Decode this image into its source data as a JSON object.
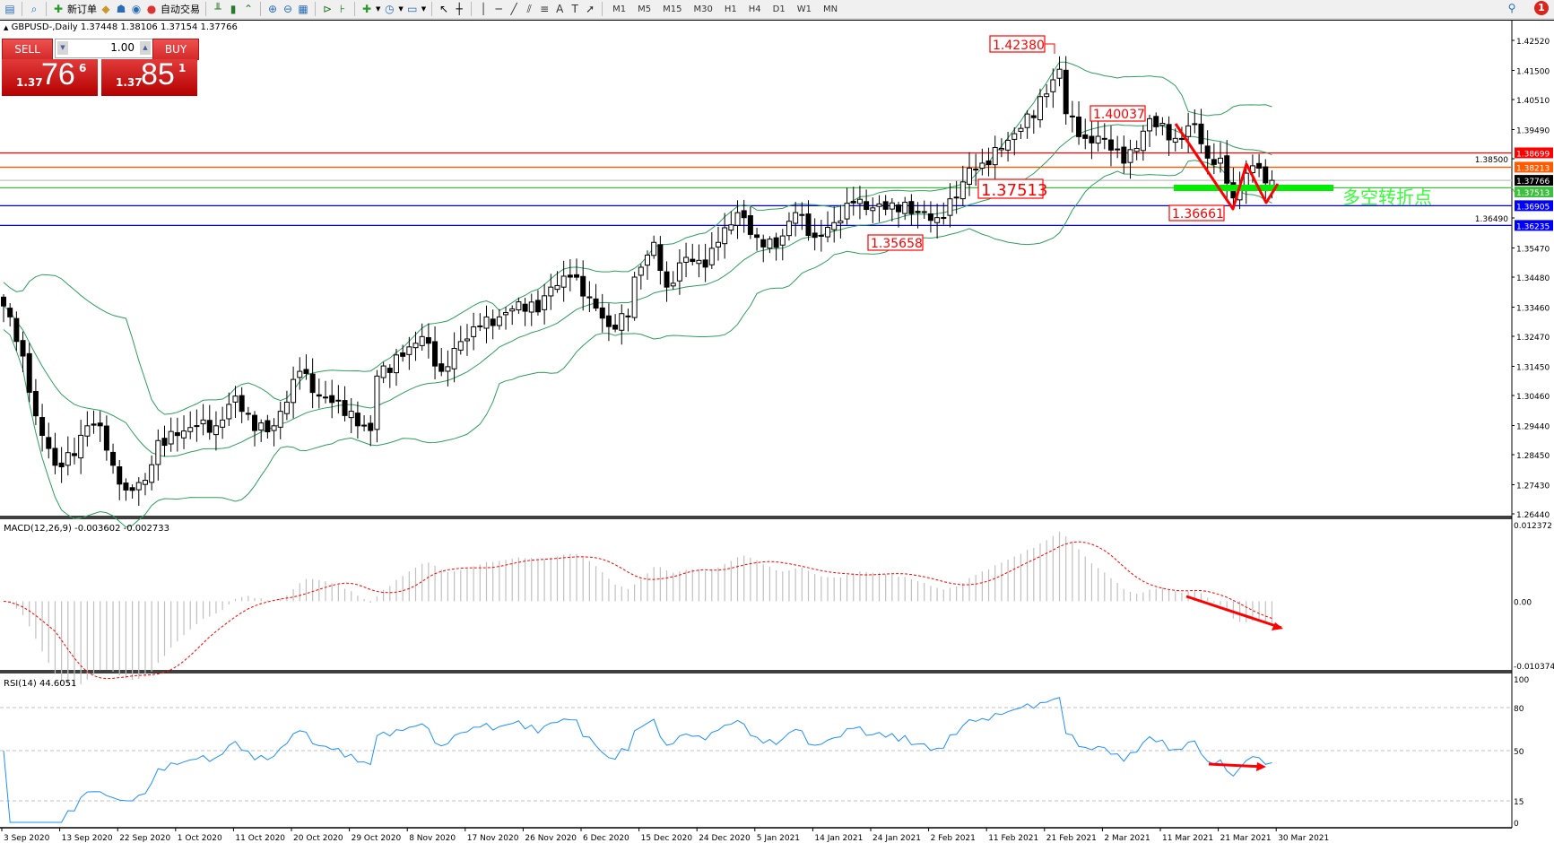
{
  "toolbar": {
    "new_order": "新订单",
    "auto_trading": "自动交易",
    "timeframes": [
      "M1",
      "M5",
      "M15",
      "M30",
      "H1",
      "H4",
      "D1",
      "W1",
      "MN"
    ],
    "active_timeframe": "D1",
    "notification_count": "1",
    "icons": [
      "new-chart-icon",
      "zoom-tool-icon",
      "new-order-icon",
      "market-watch-icon",
      "navigator-icon",
      "signals-icon",
      "auto-trading-icon",
      "bar-chart-icon",
      "candlestick-icon",
      "line-chart-icon",
      "zoom-in-icon",
      "zoom-out-icon",
      "tile-windows-icon",
      "auto-scroll-icon",
      "chart-shift-icon",
      "indicators-icon",
      "periods-icon",
      "templates-icon",
      "cursor-icon",
      "crosshair-icon",
      "vertical-line-icon",
      "horizontal-line-icon",
      "trendline-icon",
      "equidistant-channel-icon",
      "fibonacci-icon",
      "text-icon",
      "text-label-icon",
      "arrows-icon",
      "search-icon",
      "notifications-icon"
    ]
  },
  "header": {
    "symbol": "GBPUSD-,Daily",
    "open": "1.37448",
    "high": "1.38106",
    "low": "1.37154",
    "close": "1.37766"
  },
  "trade_panel": {
    "sell_label": "SELL",
    "buy_label": "BUY",
    "lot": "1.00",
    "sell_prefix": "1.37",
    "sell_big": "76",
    "sell_sup": "6",
    "buy_prefix": "1.37",
    "buy_big": "85",
    "buy_sup": "1"
  },
  "chart_data": {
    "type": "candlestick",
    "price_range": [
      1.2644,
      1.4252
    ],
    "price_ticks": [
      "1.42520",
      "1.41500",
      "1.40510",
      "1.39490",
      "1.38500",
      "1.36490",
      "1.35470",
      "1.34480",
      "1.33460",
      "1.32470",
      "1.31450",
      "1.30460",
      "1.29440",
      "1.28450",
      "1.27430",
      "1.26440"
    ],
    "date_labels": [
      "3 Sep 2020",
      "13 Sep 2020",
      "22 Sep 2020",
      "1 Oct 2020",
      "11 Oct 2020",
      "20 Oct 2020",
      "29 Oct 2020",
      "8 Nov 2020",
      "17 Nov 2020",
      "26 Nov 2020",
      "6 Dec 2020",
      "15 Dec 2020",
      "24 Dec 2020",
      "5 Jan 2021",
      "14 Jan 2021",
      "24 Jan 2021",
      "2 Feb 2021",
      "11 Feb 2021",
      "21 Feb 2021",
      "2 Mar 2021",
      "11 Mar 2021",
      "21 Mar 2021",
      "30 Mar 2021"
    ],
    "close_keypoints": [
      [
        0,
        1.335
      ],
      [
        1,
        1.3313
      ],
      [
        3,
        1.318
      ],
      [
        5,
        1.2977
      ],
      [
        8,
        1.2809
      ],
      [
        11,
        1.2842
      ],
      [
        13,
        1.2943
      ],
      [
        15,
        1.2943
      ],
      [
        17,
        1.2809
      ],
      [
        19,
        1.2725
      ],
      [
        22,
        1.2758
      ],
      [
        24,
        1.2893
      ],
      [
        27,
        1.291
      ],
      [
        30,
        1.2943
      ],
      [
        33,
        1.2943
      ],
      [
        36,
        1.3044
      ],
      [
        39,
        1.2927
      ],
      [
        42,
        1.2943
      ],
      [
        46,
        1.3128
      ],
      [
        49,
        1.3044
      ],
      [
        52,
        1.3028
      ],
      [
        55,
        1.2943
      ],
      [
        57,
        1.2927
      ],
      [
        58,
        1.3112
      ],
      [
        62,
        1.3179
      ],
      [
        65,
        1.3246
      ],
      [
        68,
        1.3128
      ],
      [
        71,
        1.3229
      ],
      [
        74,
        1.328
      ],
      [
        77,
        1.3313
      ],
      [
        80,
        1.3364
      ],
      [
        83,
        1.333
      ],
      [
        85,
        1.3414
      ],
      [
        88,
        1.3448
      ],
      [
        91,
        1.3381
      ],
      [
        94,
        1.328
      ],
      [
        97,
        1.3313
      ],
      [
        98,
        1.3448
      ],
      [
        101,
        1.3566
      ],
      [
        103,
        1.3414
      ],
      [
        106,
        1.3515
      ],
      [
        109,
        1.3482
      ],
      [
        111,
        1.3566
      ],
      [
        114,
        1.3667
      ],
      [
        117,
        1.3583
      ],
      [
        120,
        1.3549
      ],
      [
        123,
        1.3667
      ],
      [
        126,
        1.3583
      ],
      [
        129,
        1.3633
      ],
      [
        132,
        1.37
      ],
      [
        135,
        1.3683
      ],
      [
        138,
        1.37
      ],
      [
        142,
        1.3667
      ],
      [
        145,
        1.365
      ],
      [
        148,
        1.3717
      ],
      [
        150,
        1.3818
      ],
      [
        152,
        1.3835
      ],
      [
        155,
        1.3885
      ],
      [
        158,
        1.3953
      ],
      [
        162,
        1.407
      ],
      [
        164,
        1.4154
      ],
      [
        165,
        1.4003
      ],
      [
        168,
        1.3919
      ],
      [
        171,
        1.3919
      ],
      [
        174,
        1.3835
      ],
      [
        176,
        1.3885
      ],
      [
        178,
        1.3986
      ],
      [
        182,
        1.3919
      ],
      [
        185,
        1.3969
      ],
      [
        187,
        1.3852
      ],
      [
        189,
        1.3852
      ],
      [
        191,
        1.3717
      ],
      [
        193,
        1.3801
      ],
      [
        195,
        1.3818
      ],
      [
        196,
        1.3768
      ],
      [
        197,
        1.37766
      ]
    ],
    "bollinger_bands": {
      "period": 20,
      "deviation": 2,
      "color": "#2e9e5e"
    },
    "levels": [
      {
        "price": "1.38699",
        "color": "#ff0000",
        "label_bg": "#ff0000"
      },
      {
        "price": "1.38213",
        "color": "#ff5a00",
        "label_bg": "#ff5a00"
      },
      {
        "price": "1.37766",
        "color": "#c0c0c0",
        "label_bg": "#000000"
      },
      {
        "price": "1.37513",
        "color": "#3fbf3f",
        "label_bg": "#3fbf3f"
      },
      {
        "price": "1.36905",
        "color": "#0000dd",
        "label_bg": "#0000ff"
      },
      {
        "price": "1.36235",
        "color": "#0000dd",
        "label_bg": "#0000ff"
      }
    ],
    "annotations": [
      {
        "text": "1.42380",
        "price": 1.4238
      },
      {
        "text": "1.40037",
        "price": 1.40037
      },
      {
        "text": "1.37513",
        "price": 1.37513
      },
      {
        "text": "1.36661",
        "price": 1.36661
      },
      {
        "text": "1.35658",
        "price": 1.35658
      }
    ],
    "pivot_label": "多空转折点",
    "pivot_color": "#33ff33",
    "macd": {
      "label": "MACD(12,26,9) -0.003602 -0.002733",
      "range": [
        -0.010374,
        0.012372
      ],
      "ticks": [
        "0.012372",
        "0.00",
        "-0.010374"
      ],
      "histogram_color": "#c0c0c0",
      "signal_color": "#ff0000"
    },
    "rsi": {
      "label": "RSI(14) 44.6051",
      "range": [
        0,
        100
      ],
      "ticks": [
        "100",
        "80",
        "50",
        "15",
        "0"
      ],
      "levels": [
        80,
        50,
        15
      ],
      "color": "#1e90ff"
    }
  }
}
